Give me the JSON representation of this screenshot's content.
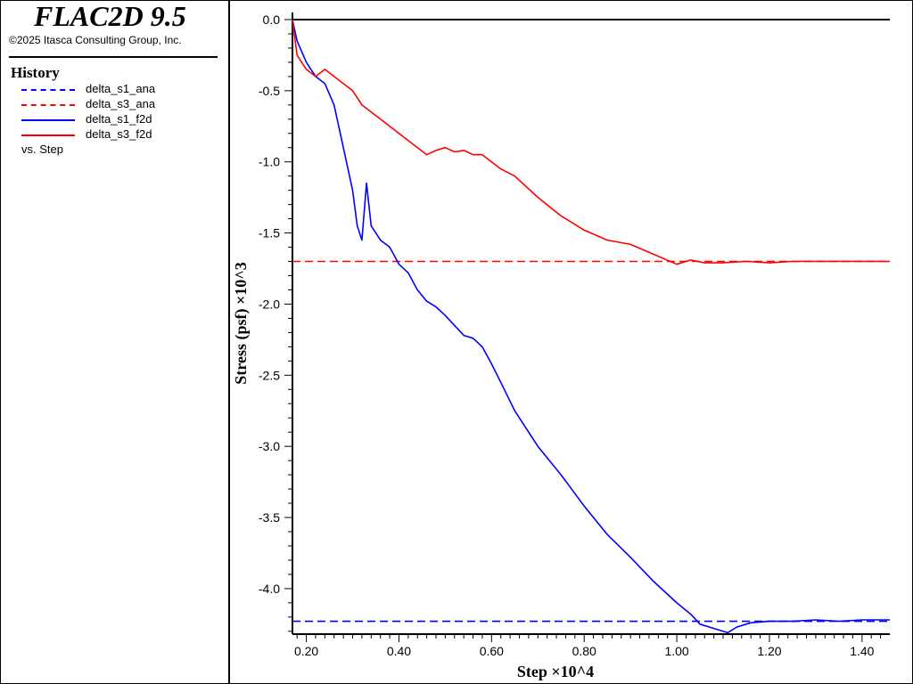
{
  "app": {
    "title": "FLAC2D 9.5",
    "copyright": "©2025 Itasca Consulting Group, Inc."
  },
  "legend": {
    "title": "History",
    "items": [
      {
        "label": "delta_s1_ana",
        "color": "#0000ff",
        "style": "dashed"
      },
      {
        "label": "delta_s3_ana",
        "color": "#ff0000",
        "style": "dashed"
      },
      {
        "label": "delta_s1_f2d",
        "color": "#0000ff",
        "style": "solid"
      },
      {
        "label": "delta_s3_f2d",
        "color": "#ff0000",
        "style": "solid"
      }
    ],
    "vs": "vs. Step"
  },
  "chart_data": {
    "type": "line",
    "xlabel": "Step ×10^4",
    "ylabel": "Stress (psf) ×10^3",
    "xlim": [
      0.17,
      1.46
    ],
    "ylim": [
      -4.32,
      0.05
    ],
    "xticks": [
      "0.20",
      "0.40",
      "0.60",
      "0.80",
      "1.00",
      "1.20",
      "1.40"
    ],
    "yticks": [
      "0.0",
      "-0.5",
      "-1.0",
      "-1.5",
      "-2.0",
      "-2.5",
      "-3.0",
      "-3.5",
      "-4.0"
    ],
    "series": [
      {
        "name": "delta_s1_ana",
        "color": "#0000ff",
        "style": "dashed",
        "x": [
          0.17,
          1.46
        ],
        "y": [
          -4.23,
          -4.23
        ]
      },
      {
        "name": "delta_s3_ana",
        "color": "#ff0000",
        "style": "dashed",
        "x": [
          0.17,
          1.46
        ],
        "y": [
          -1.7,
          -1.7
        ]
      },
      {
        "name": "delta_s1_f2d",
        "color": "#0000ff",
        "style": "solid",
        "x": [
          0.17,
          0.18,
          0.2,
          0.22,
          0.24,
          0.26,
          0.28,
          0.3,
          0.31,
          0.32,
          0.33,
          0.34,
          0.36,
          0.38,
          0.4,
          0.42,
          0.44,
          0.46,
          0.48,
          0.5,
          0.52,
          0.54,
          0.56,
          0.58,
          0.6,
          0.62,
          0.65,
          0.7,
          0.75,
          0.8,
          0.85,
          0.9,
          0.95,
          1.0,
          1.03,
          1.05,
          1.08,
          1.11,
          1.13,
          1.16,
          1.2,
          1.25,
          1.3,
          1.35,
          1.4,
          1.46
        ],
        "y": [
          0.0,
          -0.15,
          -0.3,
          -0.4,
          -0.45,
          -0.6,
          -0.9,
          -1.2,
          -1.45,
          -1.55,
          -1.15,
          -1.45,
          -1.55,
          -1.6,
          -1.72,
          -1.78,
          -1.9,
          -1.98,
          -2.02,
          -2.08,
          -2.15,
          -2.22,
          -2.24,
          -2.3,
          -2.42,
          -2.55,
          -2.75,
          -3.0,
          -3.2,
          -3.42,
          -3.62,
          -3.78,
          -3.95,
          -4.1,
          -4.18,
          -4.25,
          -4.28,
          -4.31,
          -4.27,
          -4.24,
          -4.23,
          -4.23,
          -4.22,
          -4.23,
          -4.22,
          -4.22
        ]
      },
      {
        "name": "delta_s3_f2d",
        "color": "#ff0000",
        "style": "solid",
        "x": [
          0.17,
          0.18,
          0.2,
          0.22,
          0.24,
          0.26,
          0.28,
          0.3,
          0.32,
          0.34,
          0.36,
          0.38,
          0.4,
          0.42,
          0.44,
          0.46,
          0.48,
          0.5,
          0.52,
          0.54,
          0.56,
          0.58,
          0.6,
          0.62,
          0.65,
          0.7,
          0.75,
          0.8,
          0.85,
          0.9,
          0.95,
          1.0,
          1.03,
          1.06,
          1.1,
          1.15,
          1.2,
          1.25,
          1.3,
          1.35,
          1.4,
          1.46
        ],
        "y": [
          0.0,
          -0.25,
          -0.35,
          -0.4,
          -0.35,
          -0.4,
          -0.45,
          -0.5,
          -0.6,
          -0.65,
          -0.7,
          -0.75,
          -0.8,
          -0.85,
          -0.9,
          -0.95,
          -0.92,
          -0.9,
          -0.93,
          -0.92,
          -0.95,
          -0.95,
          -1.0,
          -1.05,
          -1.1,
          -1.25,
          -1.38,
          -1.48,
          -1.55,
          -1.58,
          -1.65,
          -1.72,
          -1.69,
          -1.71,
          -1.71,
          -1.7,
          -1.71,
          -1.7,
          -1.7,
          -1.7,
          -1.7,
          -1.7
        ]
      }
    ]
  }
}
